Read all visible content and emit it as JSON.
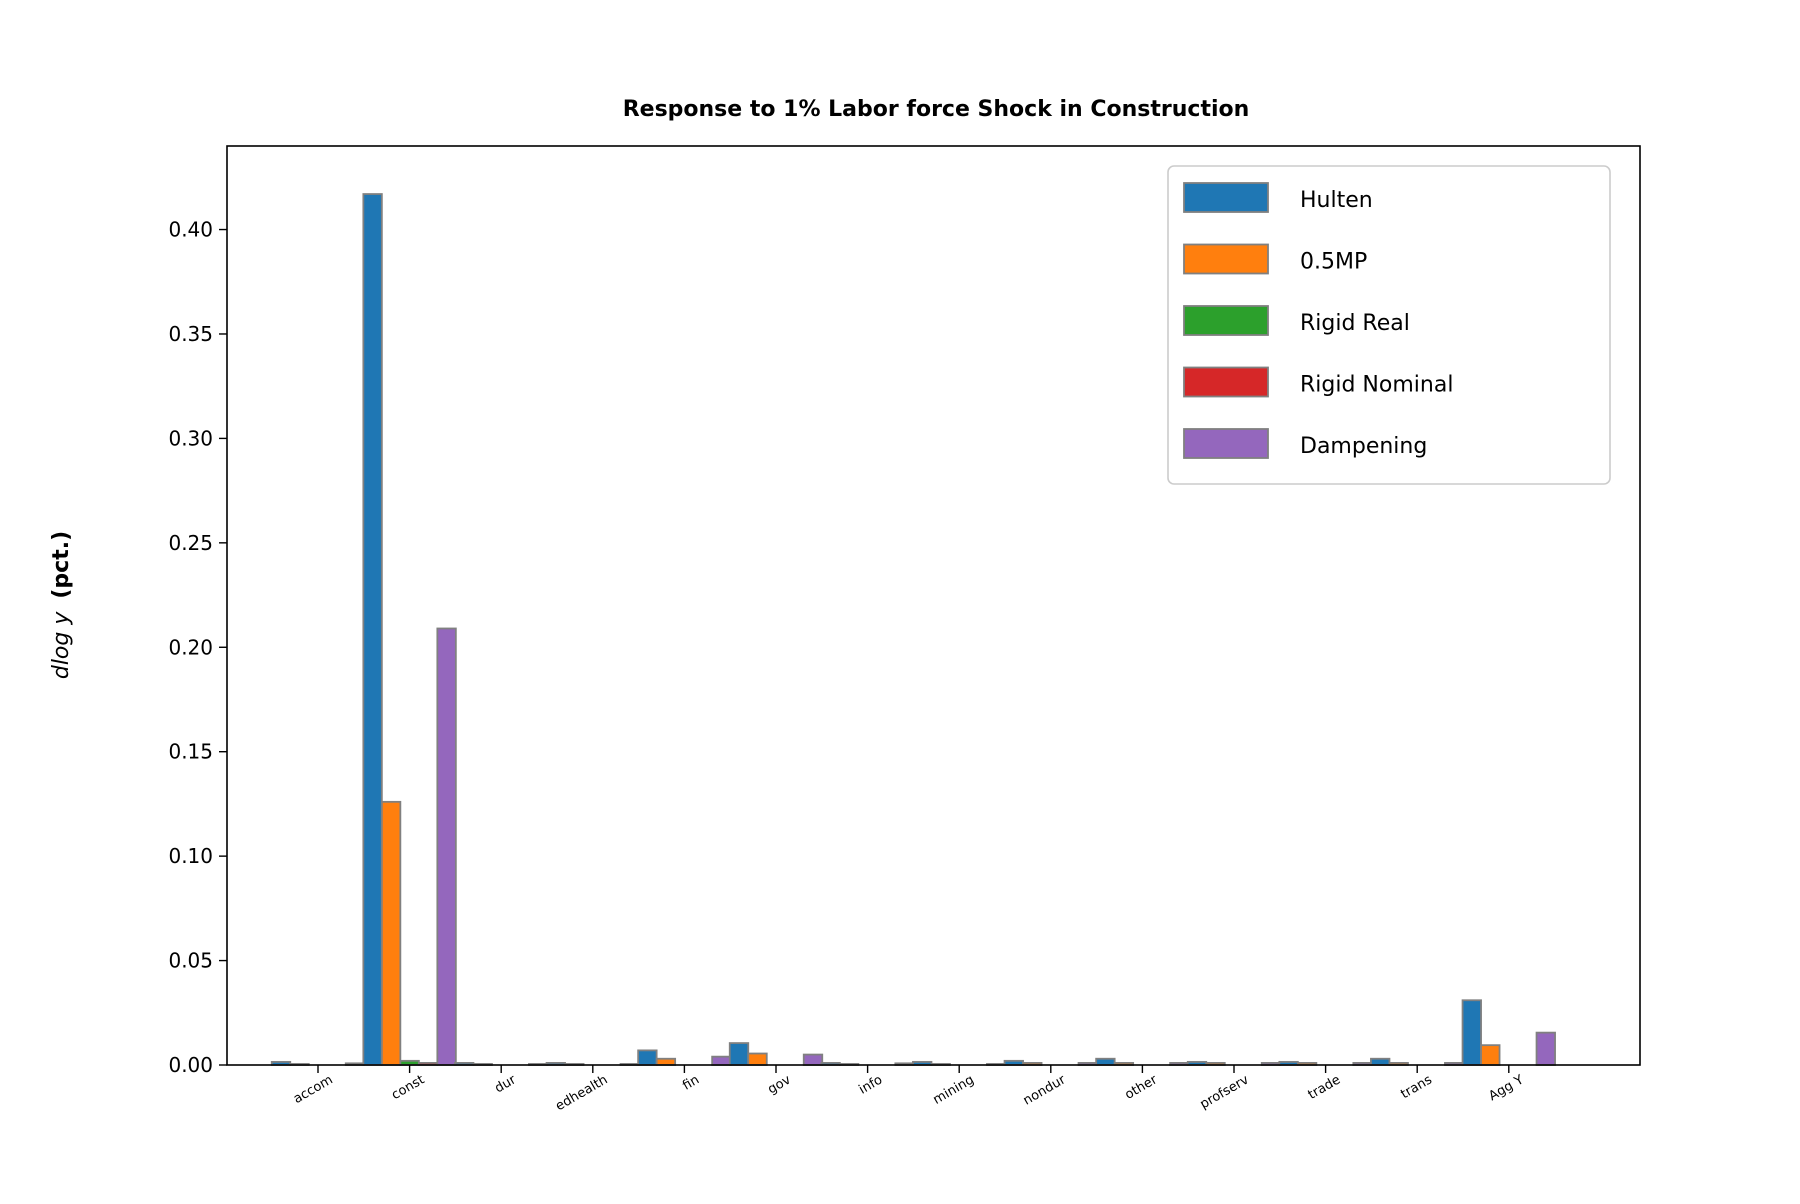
{
  "chart_data": {
    "type": "bar",
    "title": "Response to 1% Labor force Shock in Construction",
    "xlabel": "",
    "ylabel": "d log y (pct.)",
    "ylabel_parts": {
      "math": "dlog y",
      "bold": "(pct.)"
    },
    "ylim": [
      0,
      0.44
    ],
    "yticks": [
      "0.00",
      "0.05",
      "0.10",
      "0.15",
      "0.20",
      "0.25",
      "0.30",
      "0.35",
      "0.40"
    ],
    "ytick_values": [
      0,
      0.05,
      0.1,
      0.15,
      0.2,
      0.25,
      0.3,
      0.35,
      0.4
    ],
    "categories": [
      "accom",
      "const",
      "dur",
      "edhealth",
      "fin",
      "gov",
      "info",
      "mining",
      "nondur",
      "other",
      "profserv",
      "trade",
      "trans",
      "Agg Y"
    ],
    "series": [
      {
        "name": "Hulten",
        "color": "#1f77b4",
        "values": [
          0.0015,
          0.417,
          0.001,
          0.001,
          0.007,
          0.0105,
          0.001,
          0.0015,
          0.002,
          0.003,
          0.0015,
          0.0015,
          0.003,
          0.031
        ]
      },
      {
        "name": "0.5MP",
        "color": "#ff7f0e",
        "values": [
          0.0005,
          0.126,
          0.0005,
          0.0005,
          0.003,
          0.0055,
          0.0005,
          0.0005,
          0.001,
          0.001,
          0.001,
          0.001,
          0.001,
          0.0095
        ]
      },
      {
        "name": "Rigid Real",
        "color": "#2ca02c",
        "values": [
          0,
          0.002,
          0,
          0,
          0,
          0,
          0,
          0,
          0,
          0,
          0,
          0,
          0,
          0
        ]
      },
      {
        "name": "Rigid Nominal",
        "color": "#d62728",
        "values": [
          0,
          0.001,
          0,
          0,
          0,
          0,
          0,
          0,
          0,
          0,
          0,
          0,
          0,
          0
        ]
      },
      {
        "name": "Dampening",
        "color": "#9467bd",
        "values": [
          0.0008,
          0.209,
          0.0005,
          0.0005,
          0.004,
          0.005,
          0.0008,
          0.0005,
          0.001,
          0.001,
          0.001,
          0.001,
          0.001,
          0.0155
        ]
      }
    ],
    "bar_edge_color": "#808080",
    "legend": {
      "placement": "top-right",
      "entries": [
        "Hulten",
        "0.5MP",
        "Rigid Real",
        "Rigid Nominal",
        "Dampening"
      ]
    },
    "grid": false
  }
}
